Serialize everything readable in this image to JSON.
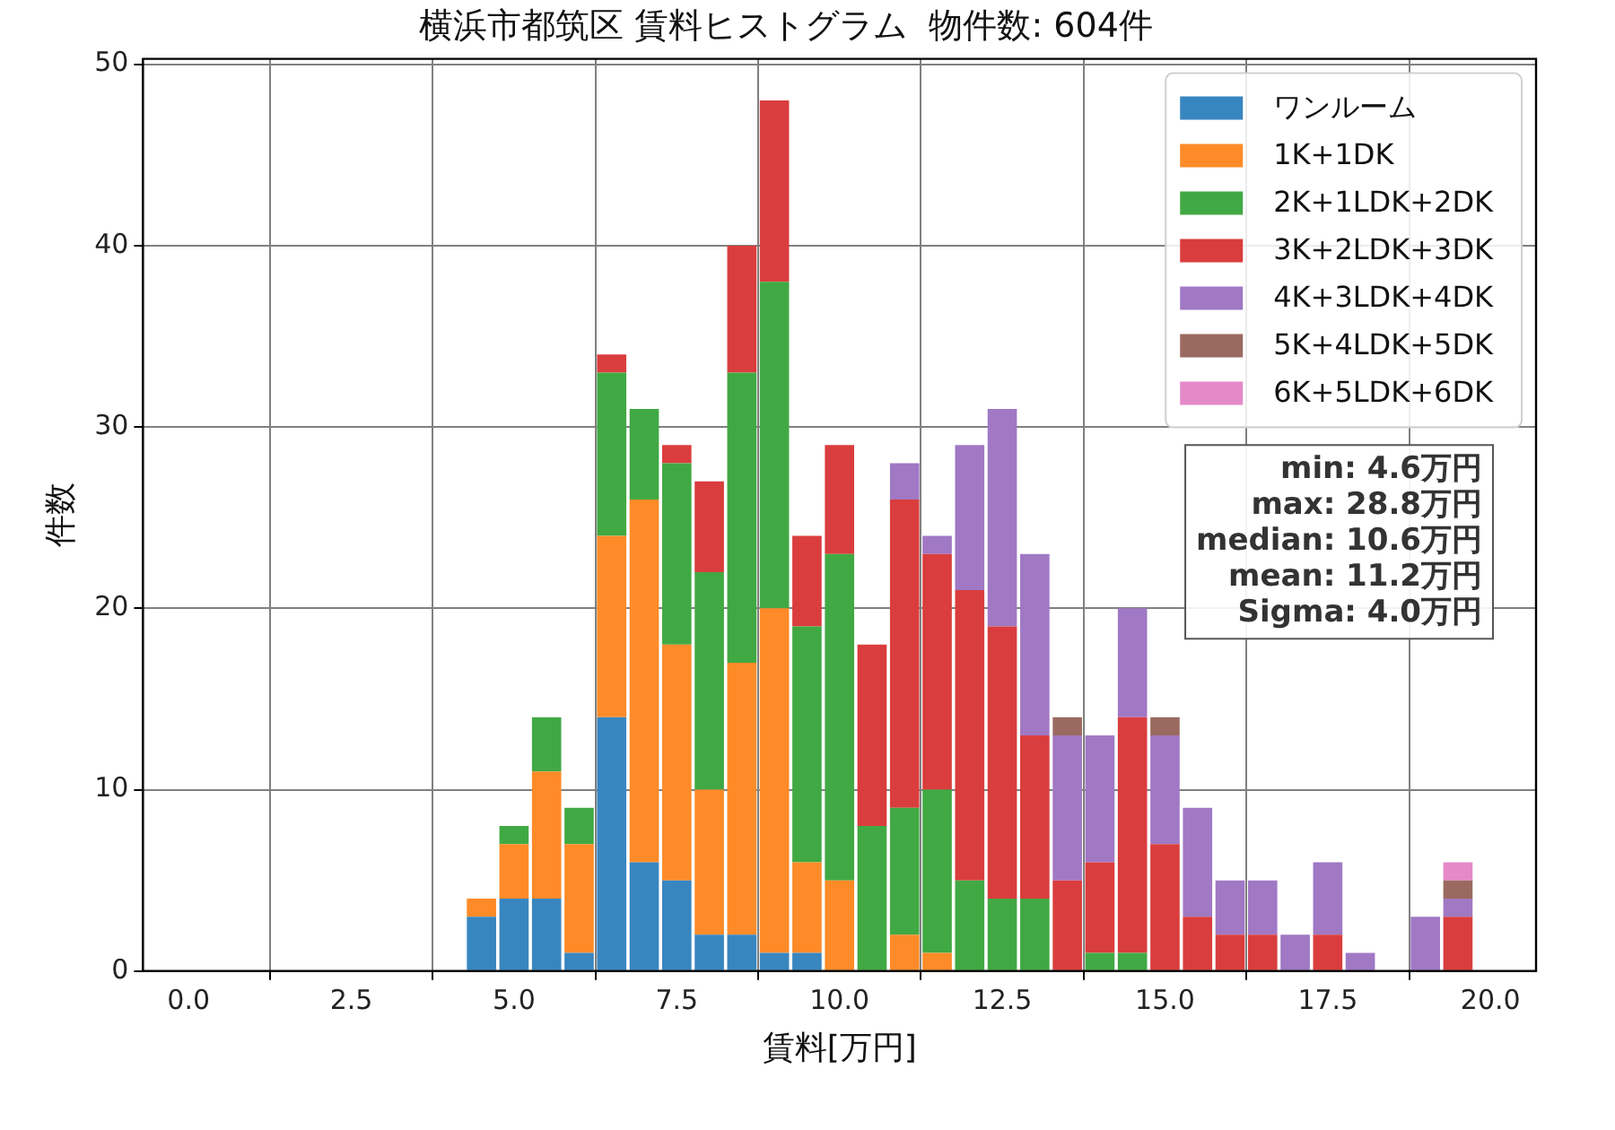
{
  "chart_data": {
    "type": "bar",
    "title": "横浜市都筑区 賃料ヒストグラム  物件数: 604件",
    "xlabel": "賃料[万円]",
    "ylabel": "件数",
    "x": [
      4.5,
      5,
      5.5,
      6,
      6.5,
      7,
      7.5,
      8,
      8.5,
      9,
      9.5,
      10,
      10.5,
      11,
      11.5,
      12,
      12.5,
      13,
      13.5,
      14,
      14.5,
      15,
      15.5,
      16,
      16.5,
      17,
      17.5,
      18,
      18.5,
      19,
      19.5
    ],
    "stacked": true,
    "series": [
      {
        "name": "ワンルーム",
        "color": "#3886c0",
        "values": [
          3,
          4,
          4,
          1,
          14,
          6,
          5,
          2,
          2,
          1,
          1,
          0,
          0,
          0,
          0,
          0,
          0,
          0,
          0,
          0,
          0,
          0,
          0,
          0,
          0,
          0,
          0,
          0,
          0,
          0,
          0
        ]
      },
      {
        "name": "1K+1DK",
        "color": "#fe8b28",
        "values": [
          1,
          3,
          7,
          6,
          10,
          20,
          13,
          8,
          15,
          19,
          5,
          5,
          0,
          2,
          1,
          0,
          0,
          0,
          0,
          0,
          0,
          0,
          0,
          0,
          0,
          0,
          0,
          0,
          0,
          0,
          0
        ]
      },
      {
        "name": "2K+1LDK+2DK",
        "color": "#41a943",
        "values": [
          0,
          1,
          3,
          2,
          9,
          5,
          10,
          12,
          16,
          18,
          13,
          18,
          8,
          7,
          9,
          5,
          4,
          4,
          0,
          1,
          1,
          0,
          0,
          0,
          0,
          0,
          0,
          0,
          0,
          0,
          0
        ]
      },
      {
        "name": "3K+2LDK+3DK",
        "color": "#da3d3d",
        "values": [
          0,
          0,
          0,
          0,
          1,
          0,
          1,
          5,
          7,
          10,
          5,
          6,
          10,
          17,
          13,
          16,
          15,
          9,
          5,
          5,
          13,
          7,
          3,
          2,
          2,
          0,
          2,
          0,
          0,
          0,
          3
        ]
      },
      {
        "name": "4K+3LDK+4DK",
        "color": "#a078c4",
        "values": [
          0,
          0,
          0,
          0,
          0,
          0,
          0,
          0,
          0,
          0,
          0,
          0,
          0,
          2,
          1,
          8,
          12,
          10,
          8,
          7,
          6,
          6,
          6,
          3,
          3,
          2,
          4,
          1,
          0,
          3,
          1
        ]
      },
      {
        "name": "5K+4LDK+5DK",
        "color": "#9a6a60",
        "values": [
          0,
          0,
          0,
          0,
          0,
          0,
          0,
          0,
          0,
          0,
          0,
          0,
          0,
          0,
          0,
          0,
          0,
          0,
          1,
          0,
          0,
          1,
          0,
          0,
          0,
          0,
          0,
          0,
          0,
          0,
          1
        ]
      },
      {
        "name": "6K+5LDK+6DK",
        "color": "#e589c9",
        "values": [
          0,
          0,
          0,
          0,
          0,
          0,
          0,
          0,
          0,
          0,
          0,
          0,
          0,
          0,
          0,
          0,
          0,
          0,
          0,
          0,
          0,
          0,
          0,
          0,
          0,
          0,
          0,
          0,
          0,
          0,
          1
        ]
      }
    ],
    "xlim": [
      -0.7,
      20.7
    ],
    "ylim": [
      0,
      50.3
    ],
    "xticks": [
      {
        "value": 0,
        "label": "0.0"
      },
      {
        "value": 2.5,
        "label": "2.5"
      },
      {
        "value": 5,
        "label": "5.0"
      },
      {
        "value": 7.5,
        "label": "7.5"
      },
      {
        "value": 10,
        "label": "10.0"
      },
      {
        "value": 12.5,
        "label": "12.5"
      },
      {
        "value": 15,
        "label": "15.0"
      },
      {
        "value": 17.5,
        "label": "17.5"
      },
      {
        "value": 20,
        "label": "20.0"
      }
    ],
    "yticks": [
      0,
      10,
      20,
      30,
      40,
      50
    ],
    "grid": true,
    "legend": "top right",
    "annotations": [
      "min: 4.6万円",
      "max: 28.8万円",
      "median: 10.6万円",
      "mean: 11.2万円",
      "Sigma: 4.0万円"
    ]
  }
}
